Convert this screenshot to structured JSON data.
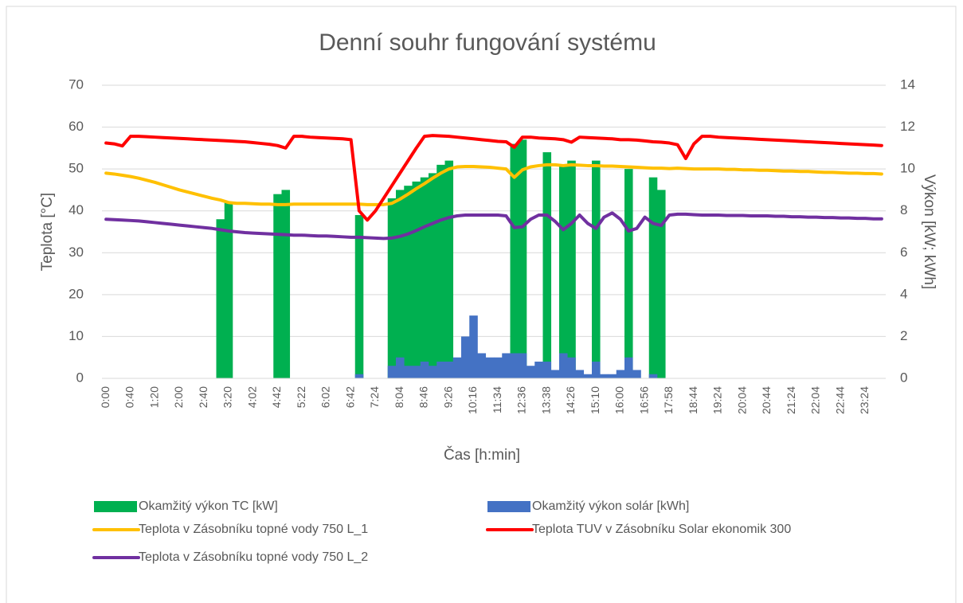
{
  "chart_data": {
    "type": "combo",
    "title": "Denní souhr fungování systému",
    "x_label": "Čas [h:min]",
    "y_label": "Teplota [°C]",
    "y2_label": "Výkon [kW; kWh]",
    "categories": [
      "0:00",
      null,
      null,
      "0:40",
      null,
      null,
      "1:20",
      null,
      null,
      "2:00",
      null,
      null,
      "2:40",
      null,
      null,
      "3:20",
      null,
      null,
      "4:02",
      null,
      null,
      "4:42",
      null,
      null,
      "5:22",
      null,
      null,
      "6:02",
      null,
      null,
      "6:42",
      null,
      null,
      "7:24",
      null,
      null,
      "8:04",
      null,
      null,
      "8:46",
      null,
      null,
      "9:26",
      null,
      null,
      "10:16",
      null,
      null,
      "11:34",
      null,
      null,
      "12:36",
      null,
      null,
      "13:38",
      null,
      null,
      "14:26",
      null,
      null,
      "15:10",
      null,
      null,
      "16:00",
      null,
      null,
      "16:56",
      null,
      null,
      "17:58",
      null,
      null,
      "18:44",
      null,
      null,
      "19:24",
      null,
      null,
      "20:04",
      null,
      null,
      "20:44",
      null,
      null,
      "21:24",
      null,
      null,
      "22:04",
      null,
      null,
      "22:44",
      null,
      null,
      "23:24",
      null,
      null
    ],
    "ylim": [
      0,
      70
    ],
    "yticks": [
      0,
      10,
      20,
      30,
      40,
      50,
      60,
      70
    ],
    "y2lim": [
      0,
      14
    ],
    "y2ticks": [
      0,
      2,
      4,
      6,
      8,
      10,
      12,
      14
    ],
    "grid": true,
    "legend": "bottom",
    "series": [
      {
        "name": "Okamžitý výkon TC  [kW]",
        "type": "area",
        "axis": "y2",
        "color": "#00b050",
        "values": [
          0,
          0,
          0,
          0,
          0,
          0,
          0,
          0,
          0,
          0,
          0,
          0,
          0,
          0,
          7.6,
          8.4,
          0,
          0,
          0,
          0,
          0,
          8.8,
          9.0,
          0,
          0,
          0,
          0,
          0,
          0,
          0,
          0,
          7.8,
          0,
          0,
          0,
          8.6,
          9.0,
          9.2,
          9.4,
          9.6,
          9.8,
          10.2,
          10.4,
          0,
          0,
          0,
          0,
          0,
          0,
          0,
          11.2,
          11.4,
          0,
          0,
          10.8,
          0,
          10.2,
          10.4,
          0,
          0,
          10.4,
          0,
          0,
          0,
          10.0,
          0,
          0,
          9.6,
          9.0,
          0,
          0,
          0,
          0,
          0,
          0,
          0,
          0,
          0,
          0,
          0,
          0,
          0,
          0,
          0,
          0,
          0,
          0,
          0,
          0,
          0,
          0,
          0,
          0,
          0,
          0,
          0
        ]
      },
      {
        "name": "Okamžitý výkon solár  [kWh]",
        "type": "area",
        "axis": "y2",
        "color": "#4472c4",
        "values": [
          0,
          0,
          0,
          0,
          0,
          0,
          0,
          0,
          0,
          0,
          0,
          0,
          0,
          0,
          0,
          0,
          0,
          0,
          0,
          0,
          0,
          0,
          0,
          0,
          0,
          0,
          0,
          0,
          0,
          0,
          0,
          0.2,
          0,
          0,
          0,
          0.6,
          1.0,
          0.6,
          0.6,
          0.8,
          0.6,
          0.8,
          0.8,
          1.0,
          2.0,
          3.0,
          1.2,
          1.0,
          1.0,
          1.2,
          1.2,
          1.2,
          0.6,
          0.8,
          0.8,
          0.4,
          1.2,
          1.0,
          0.4,
          0.2,
          0.8,
          0.2,
          0.2,
          0.4,
          1.0,
          0.4,
          0,
          0.2,
          0,
          0,
          0,
          0,
          0,
          0,
          0,
          0,
          0,
          0,
          0,
          0,
          0,
          0,
          0,
          0,
          0,
          0,
          0,
          0,
          0,
          0,
          0,
          0,
          0,
          0,
          0,
          0
        ]
      },
      {
        "name": "Teplota v Zásobníku topné vody 750 L_1",
        "type": "line",
        "axis": "y",
        "color": "#ffc000",
        "values": [
          49,
          48.8,
          48.5,
          48.2,
          47.8,
          47.3,
          46.8,
          46.2,
          45.6,
          45,
          44.5,
          44,
          43.5,
          43,
          42.6,
          42,
          41.8,
          41.8,
          41.7,
          41.6,
          41.6,
          41.5,
          41.5,
          41.6,
          41.6,
          41.6,
          41.6,
          41.6,
          41.6,
          41.6,
          41.6,
          41.6,
          41.5,
          41.5,
          41.5,
          41.8,
          42.8,
          44,
          45.3,
          46.5,
          47.8,
          49,
          50,
          50.5,
          50.6,
          50.6,
          50.5,
          50.4,
          50.2,
          50,
          48,
          49.8,
          50.5,
          50.8,
          51,
          51,
          50.8,
          51,
          50.9,
          50.8,
          50.8,
          50.7,
          50.7,
          50.6,
          50.5,
          50.4,
          50.3,
          50.2,
          50.2,
          50.1,
          50.2,
          50.1,
          50,
          50,
          50,
          50,
          49.9,
          49.9,
          49.8,
          49.8,
          49.7,
          49.7,
          49.6,
          49.5,
          49.5,
          49.4,
          49.4,
          49.3,
          49.2,
          49.2,
          49.1,
          49,
          49,
          48.9,
          48.9,
          48.8
        ]
      },
      {
        "name": "Teplota TUV v Zásobníku Solar ekonomik 300",
        "type": "line",
        "axis": "y",
        "color": "#ff0000",
        "values": [
          56.2,
          56,
          55.5,
          57.8,
          57.8,
          57.7,
          57.6,
          57.5,
          57.4,
          57.3,
          57.2,
          57.1,
          57,
          56.9,
          56.8,
          56.7,
          56.6,
          56.5,
          56.3,
          56.1,
          55.9,
          55.6,
          55,
          57.8,
          57.8,
          57.6,
          57.5,
          57.4,
          57.3,
          57.2,
          57,
          40,
          37.8,
          40,
          43,
          46,
          49,
          52,
          55,
          57.8,
          58,
          57.9,
          57.8,
          57.6,
          57.4,
          57.2,
          57,
          56.8,
          56.6,
          56.5,
          55.2,
          57.6,
          57.6,
          57.4,
          57.3,
          57.2,
          57,
          56.4,
          57.6,
          57.5,
          57.4,
          57.3,
          57.2,
          57,
          57,
          56.9,
          56.7,
          56.5,
          56.4,
          56.2,
          55.8,
          52.5,
          56,
          57.8,
          57.8,
          57.6,
          57.5,
          57.4,
          57.3,
          57.2,
          57.1,
          57,
          56.9,
          56.8,
          56.7,
          56.6,
          56.5,
          56.4,
          56.3,
          56.2,
          56.1,
          56,
          55.9,
          55.8,
          55.7,
          55.6
        ]
      },
      {
        "name": "Teplota v Zásobníku topné vody 750 L_2",
        "type": "line",
        "axis": "y",
        "color": "#7030a0",
        "values": [
          38,
          37.9,
          37.8,
          37.7,
          37.6,
          37.4,
          37.2,
          37,
          36.8,
          36.6,
          36.4,
          36.2,
          36,
          35.8,
          35.5,
          35.2,
          35,
          34.8,
          34.7,
          34.6,
          34.5,
          34.4,
          34.3,
          34.2,
          34.2,
          34.1,
          34,
          34,
          33.9,
          33.8,
          33.7,
          33.7,
          33.6,
          33.5,
          33.4,
          33.5,
          33.9,
          34.5,
          35.3,
          36.2,
          37,
          37.8,
          38.4,
          38.8,
          39,
          39,
          39,
          39,
          39,
          38.8,
          36,
          36.2,
          38,
          39,
          39,
          37.5,
          35.5,
          37,
          39,
          37,
          35.8,
          38.5,
          39.5,
          38,
          35.2,
          35.8,
          38.5,
          37,
          36.5,
          39,
          39.2,
          39.2,
          39.1,
          39,
          39,
          39,
          38.9,
          38.9,
          38.9,
          38.8,
          38.8,
          38.8,
          38.7,
          38.7,
          38.6,
          38.6,
          38.5,
          38.5,
          38.4,
          38.4,
          38.3,
          38.3,
          38.2,
          38.2,
          38.1,
          38.1
        ]
      }
    ]
  }
}
